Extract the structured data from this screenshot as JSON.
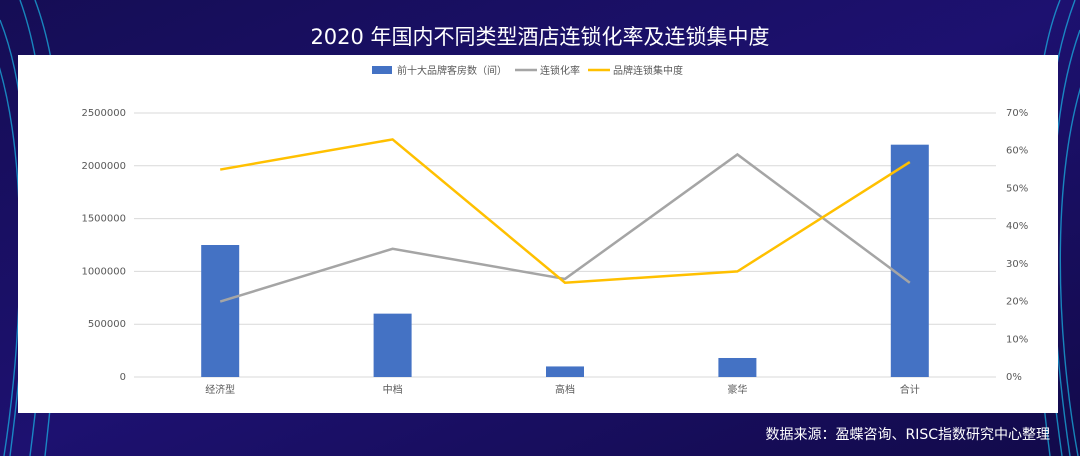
{
  "chart_data": {
    "type": "bar",
    "title": "2020 年国内不同类型酒店连锁化率及连锁集中度",
    "source": "数据来源：盈蝶咨询、RISC指数研究中心整理",
    "categories": [
      "经济型",
      "中档",
      "高档",
      "豪华",
      "合计"
    ],
    "series": [
      {
        "name": "前十大品牌客房数（间）",
        "type": "bar",
        "color": "#4472c4",
        "values": [
          1250000,
          600000,
          100000,
          180000,
          2200000
        ]
      },
      {
        "name": "连锁化率",
        "type": "line",
        "axis": "y2",
        "color": "#a5a5a5",
        "values": [
          20,
          34,
          26,
          59,
          25
        ]
      },
      {
        "name": "品牌连锁集中度",
        "type": "line",
        "axis": "y2",
        "color": "#ffc000",
        "values": [
          55,
          63,
          25,
          28,
          57
        ]
      }
    ],
    "ylim": [
      0,
      2500000
    ],
    "yticks": [
      0,
      500000,
      1000000,
      1500000,
      2000000,
      2500000
    ],
    "y2lim": [
      0,
      70
    ],
    "y2ticks": [
      {
        "value": 0,
        "label": "0%"
      },
      {
        "value": 10,
        "label": "10%"
      },
      {
        "value": 20,
        "label": "20%"
      },
      {
        "value": 30,
        "label": "30%"
      },
      {
        "value": 40,
        "label": "40%"
      },
      {
        "value": 50,
        "label": "50%"
      },
      {
        "value": 60,
        "label": "60%"
      },
      {
        "value": 70,
        "label": "70%"
      }
    ],
    "grid": true,
    "legend": "top"
  }
}
